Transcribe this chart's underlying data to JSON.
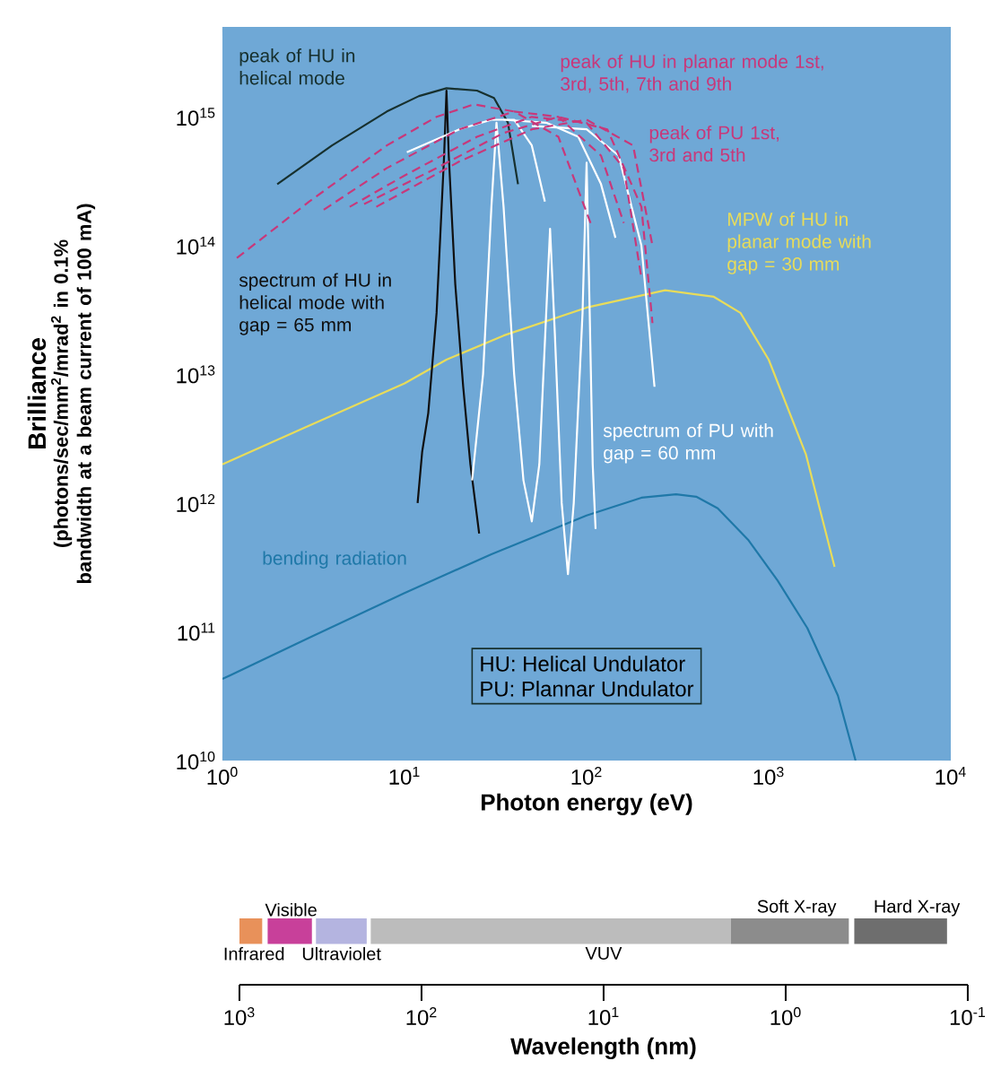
{
  "chart_data": [
    {
      "type": "line",
      "log": "xy",
      "xlabel": "Photon energy (eV)",
      "ylabel": "Brilliance",
      "xlim": [
        1,
        10000
      ],
      "ylim": [
        10000000000.0,
        5000000000000000.0
      ],
      "xticks": [
        {
          "value": 1,
          "label": "10$^{0}$"
        },
        {
          "value": 10,
          "label": "10$^{1}$"
        },
        {
          "value": 100,
          "label": "10$^{2}$"
        },
        {
          "value": 1000,
          "label": "10$^{3}$"
        },
        {
          "value": 10000,
          "label": "10$^{4}$"
        }
      ],
      "yticks": [
        {
          "value": 10000000000.0,
          "label": "10$^{10}$"
        },
        {
          "value": 100000000000.0,
          "label": "10$^{11}$"
        },
        {
          "value": 1000000000000.0,
          "label": "10$^{12}$"
        },
        {
          "value": 10000000000000.0,
          "label": "10$^{13}$"
        },
        {
          "value": 100000000000000.0,
          "label": "10$^{14}$"
        },
        {
          "value": 1000000000000000.0,
          "label": "10$^{15}$"
        }
      ],
      "series": [
        {
          "color": "#1f78a8",
          "x": [
            1,
            3,
            10,
            17,
            30,
            100,
            200,
            310,
            400,
            525,
            770,
            1120,
            1630,
            2400,
            3000
          ],
          "values": [
            43000000000.0,
            90000000000.0,
            200000000000.0,
            280000000000.0,
            400000000000.0,
            800000000000.0,
            1100000000000.0,
            1170000000000.0,
            1120000000000.0,
            910000000000.0,
            520000000000.0,
            250000000000.0,
            107000000000.0,
            32000000000.0,
            10000000000.0
          ]
        },
        {
          "color": "#e8dc5a",
          "x": [
            1,
            3,
            10,
            17,
            35,
            100,
            270,
            500,
            700,
            1000,
            1600,
            2300
          ],
          "values": [
            2000000000000.0,
            4000000000000.0,
            8500000000000.0,
            13000000000000.0,
            20000000000000.0,
            33000000000000.0,
            45000000000000.0,
            40000000000000.0,
            30000000000000.0,
            13000000000000.0,
            2400000000000.0,
            320000000000.0
          ]
        },
        {
          "color": "#17302e",
          "x": [
            2,
            4,
            8,
            12,
            17,
            25,
            31,
            37,
            42
          ],
          "values": [
            300000000000000.0,
            600000000000000.0,
            1100000000000000.0,
            1450000000000000.0,
            1670000000000000.0,
            1600000000000000.0,
            1400000000000000.0,
            900000000000000.0,
            300000000000000.0
          ]
        },
        {
          "color": "#101010",
          "x": [
            11.8,
            12.5,
            13.5,
            15,
            16.5,
            17,
            17.5,
            19,
            21,
            23,
            25.7
          ],
          "values": [
            1000000000000.0,
            2500000000000.0,
            5000000000000.0,
            30000000000000.0,
            500000000000000.0,
            1600000000000000.0,
            500000000000000.0,
            50000000000000.0,
            8000000000000.0,
            2000000000000.0,
            580000000000.0
          ]
        },
        {
          "color": "#ffffff",
          "x": [
            23.5,
            27,
            30,
            32,
            35,
            40,
            45,
            50,
            55,
            60,
            63,
            67,
            73,
            79,
            85,
            95,
            100,
            104,
            108,
            112
          ],
          "values": [
            1500000000000.0,
            10000000000000.0,
            200000000000000.0,
            900000000000000.0,
            200000000000000.0,
            10000000000000.0,
            1500000000000.0,
            720000000000.0,
            2000000000000.0,
            30000000000000.0,
            135000000000000.0,
            20000000000000.0,
            1000000000000.0,
            280000000000.0,
            1000000000000.0,
            30000000000000.0,
            440000000000000.0,
            30000000000000.0,
            2000000000000.0,
            630000000000.0
          ]
        },
        {
          "color": "#ffffff",
          "x": [
            10.3,
            20,
            30,
            40,
            50,
            59
          ],
          "values": [
            530000000000000.0,
            800000000000000.0,
            950000000000000.0,
            950000000000000.0,
            600000000000000.0,
            220000000000000.0
          ]
        },
        {
          "color": "#ffffff",
          "x": [
            35,
            60,
            90,
            120,
            144
          ],
          "values": [
            950000000000000.0,
            900000000000000.0,
            700000000000000.0,
            300000000000000.0,
            115000000000000.0
          ]
        },
        {
          "color": "#ffffff",
          "x": [
            50,
            100,
            150,
            200,
            236
          ],
          "values": [
            850000000000000.0,
            800000000000000.0,
            500000000000000.0,
            100000000000000.0,
            8000000000000.0
          ]
        },
        {
          "color": "#c8387a",
          "line_style": "dashed",
          "x": [
            1.2,
            3,
            8,
            15,
            24,
            40,
            70,
            107
          ],
          "values": [
            80000000000000.0,
            220000000000000.0,
            600000000000000.0,
            1000000000000000.0,
            1250000000000000.0,
            1100000000000000.0,
            700000000000000.0,
            140000000000000.0
          ]
        },
        {
          "color": "#c8387a",
          "line_style": "dashed",
          "x": [
            3.6,
            8,
            20,
            40,
            70,
            120,
            160
          ],
          "values": [
            190000000000000.0,
            400000000000000.0,
            800000000000000.0,
            1100000000000000.0,
            1000000000000000.0,
            500000000000000.0,
            150000000000000.0
          ]
        },
        {
          "color": "#c8387a",
          "line_style": "dashed",
          "x": [
            5,
            10,
            25,
            50,
            100,
            160,
            200
          ],
          "values": [
            200000000000000.0,
            350000000000000.0,
            700000000000000.0,
            1000000000000000.0,
            900000000000000.0,
            400000000000000.0,
            56000000000000.0
          ]
        },
        {
          "color": "#c8387a",
          "line_style": "dashed",
          "x": [
            6,
            15,
            35,
            70,
            130,
            200,
            230
          ],
          "values": [
            210000000000000.0,
            400000000000000.0,
            750000000000000.0,
            1000000000000000.0,
            800000000000000.0,
            200000000000000.0,
            25000000000000.0
          ]
        },
        {
          "color": "#c8387a",
          "line_style": "dashed",
          "x": [
            7,
            20,
            50,
            100,
            180,
            230
          ],
          "values": [
            200000000000000.0,
            450000000000000.0,
            800000000000000.0,
            950000000000000.0,
            600000000000000.0,
            100000000000000.0
          ]
        }
      ],
      "annotations": [
        "peak of HU in helical mode",
        "peak of HU in planar mode 1st, 3rd, 5th, 7th and 9th",
        "peak of PU 1st, 3rd and 5th",
        "MPW of HU in planar mode with gap = 30 mm",
        "spectrum of HU in helical mode with gap = 65 mm",
        "spectrum of PU with gap = 60 mm",
        "bending radiation",
        "HU: Helical Undulator",
        "PU: Plannar Undulator",
        "(photons/sec/mm$^{2}$/mrad$^{2}$ in 0.1% bandwidth at a beam current of 100 mA)"
      ]
    },
    {
      "type": "bar",
      "orientation": "horizontal",
      "log": "x",
      "categories": [
        null
      ],
      "xlabel": "Wavelength (nm)",
      "xlim": [
        1000,
        0.1
      ],
      "xticks": [
        {
          "value": 1000,
          "label": "10$^{3}$"
        },
        {
          "value": 100,
          "label": "10$^{2}$"
        },
        {
          "value": 10,
          "label": "10$^{1}$"
        },
        {
          "value": 1,
          "label": "10$^{0}$"
        },
        {
          "value": 0.1,
          "label": "10$^{-1}$"
        }
      ],
      "series": [
        {
          "name": "Infrared",
          "color": "#e8915a",
          "base": [
            1000
          ],
          "values": [
            -250
          ]
        },
        {
          "name": "Visible",
          "color": "#c8409a",
          "base": [
            700
          ],
          "values": [
            -300
          ]
        },
        {
          "name": "Ultraviolet",
          "color": "#b4b4e0",
          "base": [
            380
          ],
          "values": [
            -180
          ]
        },
        {
          "name": "VUV",
          "color": "#bcbcbc",
          "base": [
            190
          ],
          "values": [
            -188
          ]
        },
        {
          "name": "Soft X-ray",
          "color": "#8c8c8c",
          "base": [
            2
          ],
          "values": [
            -1.55
          ]
        },
        {
          "name": "Hard X-ray",
          "color": "#6e6e6e",
          "base": [
            0.42
          ],
          "values": [
            -0.29
          ]
        }
      ]
    }
  ]
}
